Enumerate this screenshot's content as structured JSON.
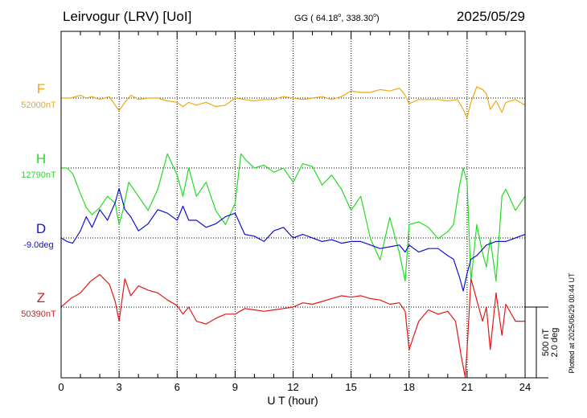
{
  "header": {
    "station": "Leirvogur (LRV)  [UoI]",
    "coords_prefix": "GG ( 64.18",
    "coords_mid": ", 338.30",
    "coords_suffix": ")",
    "degree_mark": "o",
    "date": "2025/05/29"
  },
  "plotted_note": "Plotted at 2025/06/29 00:44 UT",
  "scale_bar": {
    "line1": "500 nT",
    "line2": "2.0 deg"
  },
  "chart_data": {
    "type": "line",
    "xlabel": "U T (hour)",
    "xlim": [
      0,
      24
    ],
    "xticks": [
      "0",
      "3",
      "6",
      "9",
      "12",
      "15",
      "18",
      "21",
      "24"
    ],
    "grid": true,
    "series": [
      {
        "name": "F",
        "baseline_label": "52000nT",
        "color": "#f0a818",
        "x": [
          0,
          0.5,
          1,
          1.3,
          1.6,
          2,
          2.5,
          2.8,
          3,
          3.3,
          3.6,
          4,
          4.5,
          5,
          5.5,
          6,
          6.3,
          6.6,
          7,
          7.5,
          8,
          8.5,
          9,
          9.5,
          10,
          10.5,
          11,
          11.5,
          12,
          12.5,
          13,
          13.5,
          14,
          14.5,
          15,
          15.5,
          16,
          16.5,
          17,
          17.5,
          17.8,
          18,
          18.5,
          19,
          19.5,
          20,
          20.5,
          20.8,
          21,
          21.2,
          21.5,
          21.8,
          22,
          22.2,
          22.5,
          22.8,
          23,
          23.5,
          24
        ],
        "values": [
          0,
          0,
          20,
          0,
          10,
          -10,
          10,
          -50,
          -90,
          -30,
          20,
          -10,
          0,
          0,
          -20,
          -30,
          -60,
          -30,
          -50,
          -30,
          -60,
          -50,
          0,
          -10,
          -20,
          -10,
          -10,
          10,
          0,
          -10,
          0,
          10,
          -10,
          10,
          50,
          40,
          40,
          60,
          50,
          70,
          20,
          -40,
          -10,
          -10,
          -10,
          -20,
          -10,
          -80,
          -140,
          -30,
          80,
          60,
          30,
          -80,
          -20,
          -100,
          -30,
          -10,
          -50
        ]
      },
      {
        "name": "H",
        "baseline_label": "12790nT",
        "color": "#22dd22",
        "x": [
          0,
          0.3,
          0.6,
          1,
          1.3,
          1.6,
          2,
          2.4,
          2.8,
          3,
          3.2,
          3.5,
          4,
          4.5,
          5,
          5.5,
          6,
          6.3,
          6.6,
          7,
          7.5,
          8,
          8.5,
          9,
          9.3,
          9.6,
          10,
          10.5,
          11,
          11.5,
          12,
          12.5,
          13,
          13.5,
          14,
          14.5,
          15,
          15.5,
          16,
          16.5,
          17,
          17.5,
          17.8,
          18,
          18.5,
          19,
          19.5,
          20,
          20.3,
          20.6,
          20.8,
          21,
          21.2,
          21.5,
          21.8,
          22,
          22.2,
          22.5,
          22.8,
          23,
          23.5,
          24
        ],
        "values": [
          0,
          0,
          -40,
          -180,
          -280,
          -330,
          -280,
          -200,
          -250,
          -400,
          -300,
          -100,
          -200,
          -300,
          -150,
          100,
          -50,
          -200,
          0,
          -200,
          -100,
          -300,
          -400,
          -250,
          100,
          50,
          0,
          20,
          -30,
          0,
          -100,
          30,
          10,
          -120,
          -50,
          -150,
          -300,
          -200,
          -500,
          -650,
          -350,
          -600,
          -800,
          -400,
          -380,
          -420,
          -500,
          -450,
          -400,
          -130,
          0,
          -100,
          -800,
          -400,
          -600,
          -700,
          -500,
          -800,
          -200,
          -150,
          -300,
          -200
        ]
      },
      {
        "name": "D",
        "baseline_label": "-9.0deg",
        "color": "#1010d8",
        "x": [
          0,
          0.3,
          0.6,
          1,
          1.3,
          1.6,
          2,
          2.4,
          2.8,
          3,
          3.3,
          3.6,
          4,
          4.5,
          5,
          5.5,
          6,
          6.3,
          6.6,
          7,
          7.5,
          8,
          8.5,
          9,
          9.5,
          10,
          10.5,
          11,
          11.5,
          12,
          12.5,
          13,
          13.5,
          14,
          14.5,
          15,
          15.5,
          16,
          16.5,
          17,
          17.5,
          17.8,
          18,
          18.5,
          19,
          19.5,
          20,
          20.3,
          20.6,
          20.8,
          21,
          21.2,
          21.5,
          22,
          22.5,
          23,
          23.5,
          24
        ],
        "values": [
          0,
          -0.1,
          -0.15,
          0.2,
          0.6,
          0.3,
          0.8,
          0.5,
          1,
          1.4,
          0.8,
          0.6,
          0.2,
          0.4,
          0.8,
          0.7,
          0.5,
          0.9,
          0.5,
          0.5,
          0.3,
          0.4,
          0.6,
          0.7,
          0.1,
          0.05,
          -0.1,
          0.2,
          0.3,
          0,
          0.1,
          0,
          -0.1,
          -0.05,
          -0.15,
          -0.1,
          -0.1,
          -0.2,
          -0.3,
          -0.25,
          -0.2,
          -0.4,
          -0.2,
          -0.4,
          -0.3,
          -0.3,
          -0.5,
          -0.6,
          -1.1,
          -1.5,
          -1,
          -0.6,
          -0.5,
          -0.2,
          -0.1,
          -0.1,
          0,
          0.1
        ]
      },
      {
        "name": "Z",
        "baseline_label": "50390nT",
        "color": "#e01818",
        "x": [
          0,
          0.5,
          1,
          1.5,
          2,
          2.5,
          2.8,
          3,
          3.3,
          3.6,
          4,
          4.5,
          5,
          5.5,
          6,
          6.3,
          6.6,
          7,
          7.5,
          8,
          8.5,
          9,
          9.5,
          10,
          10.5,
          11,
          11.5,
          12,
          12.5,
          13,
          13.5,
          14,
          14.5,
          15,
          15.5,
          16,
          16.5,
          17,
          17.5,
          17.8,
          18,
          18.5,
          19,
          19.5,
          20,
          20.4,
          20.7,
          20.9,
          21,
          21.2,
          21.5,
          21.8,
          22,
          22.2,
          22.5,
          22.8,
          23,
          23.5,
          24
        ],
        "values": [
          0,
          60,
          100,
          180,
          230,
          160,
          40,
          -100,
          200,
          80,
          150,
          120,
          100,
          50,
          10,
          -50,
          0,
          -100,
          -120,
          -80,
          -50,
          -50,
          -10,
          -20,
          -30,
          -20,
          -10,
          0,
          30,
          20,
          40,
          60,
          80,
          70,
          80,
          60,
          50,
          20,
          30,
          -30,
          -300,
          -100,
          -20,
          -50,
          -30,
          -100,
          -350,
          -500,
          -300,
          200,
          50,
          -100,
          0,
          -300,
          100,
          -200,
          20,
          -100,
          -100
        ]
      }
    ]
  }
}
